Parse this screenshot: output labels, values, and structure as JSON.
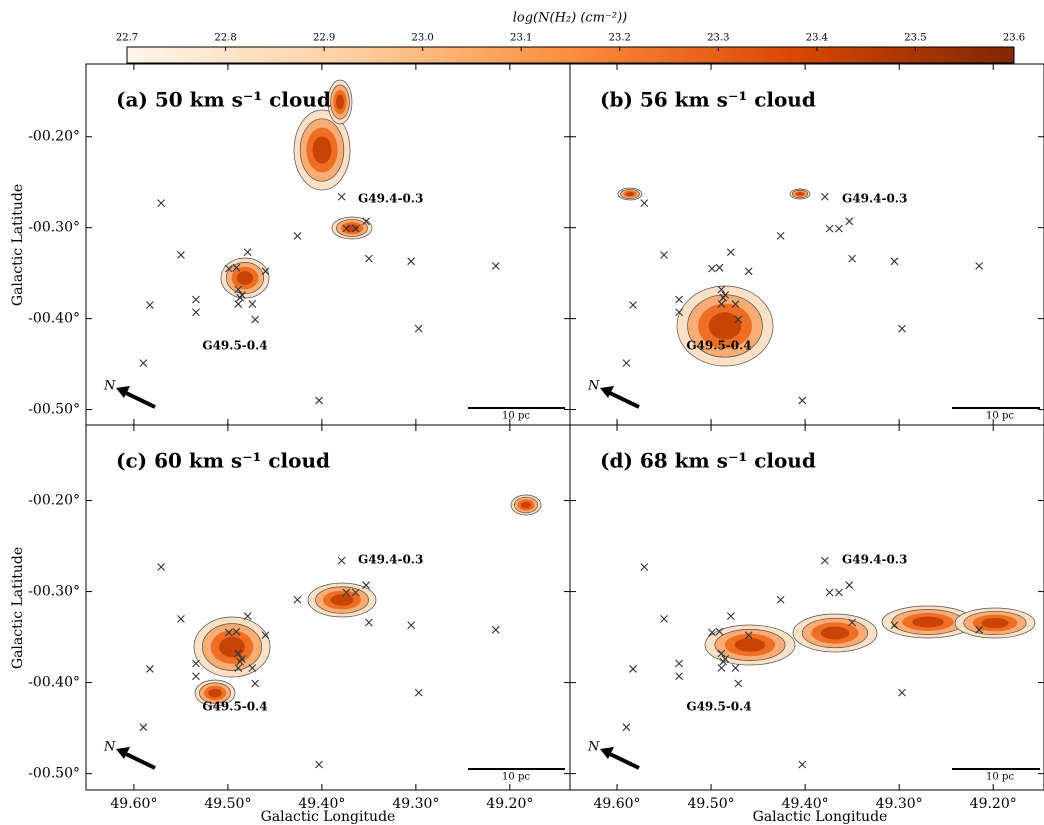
{
  "chart_data": {
    "type": "map",
    "colorbar": {
      "label": "log(N(H₂) (cm⁻²))",
      "lim": [
        22.7,
        23.6
      ],
      "ticks": [
        22.7,
        22.8,
        22.9,
        {
          "value": 23.0,
          "label": "23.0"
        },
        23.1,
        23.2,
        23.3,
        23.4,
        23.5,
        23.6
      ],
      "colormap": [
        "#fff5eb",
        "#fdd0a2",
        "#fd8d3c",
        "#d94801",
        "#7f2704"
      ]
    },
    "xlabel": "Galactic Longitude",
    "ylabel": "Galactic Latitude",
    "xticks": [
      {
        "value": 49.6,
        "label": "49.60°"
      },
      {
        "value": 49.5,
        "label": "49.50°"
      },
      {
        "value": 49.4,
        "label": "49.40°"
      },
      {
        "value": 49.3,
        "label": "49.30°"
      },
      {
        "value": 49.2,
        "label": "49.20°"
      }
    ],
    "yticks": [
      {
        "value": -0.2,
        "label": "-00.20°"
      },
      {
        "value": -0.3,
        "label": "-00.30°"
      },
      {
        "value": -0.4,
        "label": "-00.40°"
      },
      {
        "value": -0.5,
        "label": "-00.50°"
      }
    ],
    "annotations": [
      "G49.4-0.3",
      "G49.5-0.4"
    ],
    "north_label": "N",
    "scale_bar_label": "10 pc",
    "sources": {
      "x": [
        49.571,
        49.55,
        49.583,
        49.59,
        49.534,
        49.534,
        49.499,
        49.491,
        49.479,
        49.489,
        49.487,
        49.489,
        49.485,
        49.474,
        49.471,
        49.46,
        49.426,
        49.379,
        49.374,
        49.364,
        49.353,
        49.35,
        49.305,
        49.297,
        49.215,
        49.403
      ],
      "y": [
        -0.273,
        -0.33,
        -0.385,
        -0.449,
        -0.379,
        -0.393,
        -0.345,
        -0.344,
        -0.327,
        -0.368,
        -0.377,
        -0.384,
        -0.374,
        -0.384,
        -0.401,
        -0.348,
        -0.309,
        -0.266,
        -0.301,
        -0.301,
        -0.293,
        -0.334,
        -0.337,
        -0.411,
        -0.342,
        -0.49
      ]
    },
    "panels": [
      {
        "title": "(a) 50 km s⁻¹  cloud",
        "xlim": [
          49.651,
          49.136
        ],
        "ylim": [
          -0.517,
          -0.12
        ]
      },
      {
        "title": "(b) 56 km s⁻¹  cloud",
        "xlim": [
          49.65,
          49.146
        ],
        "ylim": [
          -0.517,
          -0.12
        ]
      },
      {
        "title": "(c) 60 km s⁻¹  cloud",
        "xlim": [
          49.651,
          49.136
        ],
        "ylim": [
          -0.518,
          -0.117
        ]
      },
      {
        "title": "(d) 68 km s⁻¹  cloud",
        "xlim": [
          49.65,
          49.146
        ],
        "ylim": [
          -0.518,
          -0.117
        ]
      }
    ]
  }
}
